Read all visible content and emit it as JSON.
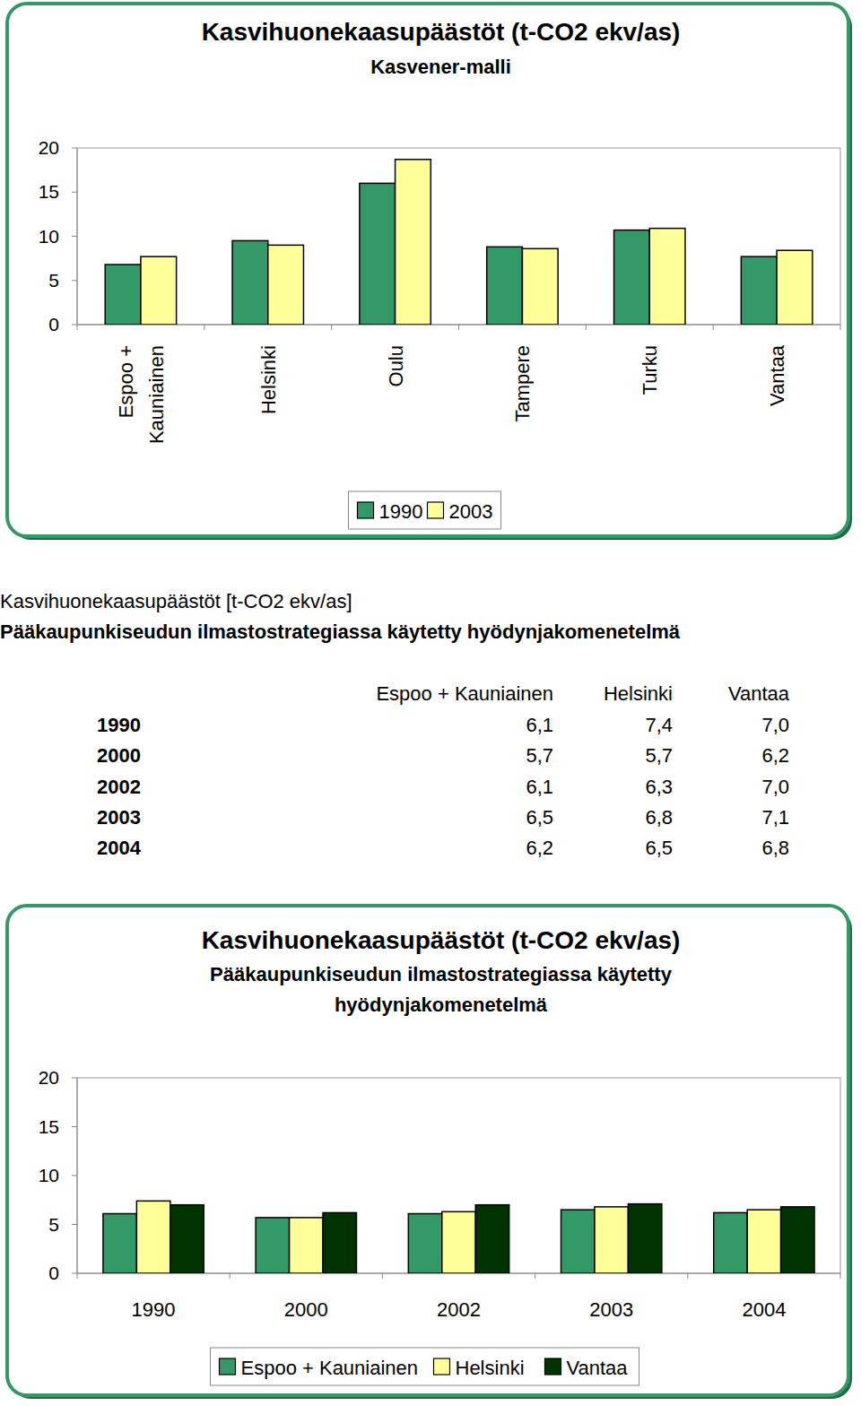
{
  "chart_data": [
    {
      "type": "bar",
      "title": "Kasvihuonekaasupäästöt (t-CO2 ekv/as)",
      "subtitle": "Kasvener-malli",
      "categories": [
        "Espoo + Kauniainen",
        "Helsinki",
        "Oulu",
        "Tampere",
        "Turku",
        "Vantaa"
      ],
      "series": [
        {
          "name": "1990",
          "color": "#339966",
          "values": [
            6.8,
            9.5,
            16.0,
            8.8,
            10.7,
            7.7
          ]
        },
        {
          "name": "2003",
          "color": "#ffff99",
          "values": [
            7.7,
            9.0,
            18.7,
            8.6,
            10.9,
            8.4
          ]
        }
      ],
      "ylim": [
        0,
        20
      ],
      "yticks": [
        0,
        5,
        10,
        15,
        20
      ],
      "grid": false,
      "legend": "bottom"
    },
    {
      "type": "bar",
      "title": "Kasvihuonekaasupäästöt (t-CO2 ekv/as)",
      "subtitle": "Pääkaupunkiseudun ilmastostrategiassa käytetty hyödynjakomenetelmä",
      "categories": [
        "1990",
        "2000",
        "2002",
        "2003",
        "2004"
      ],
      "series": [
        {
          "name": "Espoo + Kauniainen",
          "color": "#339966",
          "values": [
            6.1,
            5.7,
            6.1,
            6.5,
            6.2
          ]
        },
        {
          "name": "Helsinki",
          "color": "#ffff99",
          "values": [
            7.4,
            5.7,
            6.3,
            6.8,
            6.5
          ]
        },
        {
          "name": "Vantaa",
          "color": "#003300",
          "values": [
            7.0,
            6.2,
            7.0,
            7.1,
            6.8
          ]
        }
      ],
      "ylim": [
        0,
        20
      ],
      "yticks": [
        0,
        5,
        10,
        15,
        20
      ],
      "grid": false,
      "legend": "bottom"
    }
  ],
  "table": {
    "title": "Kasvihuonekaasupäästöt [t-CO2 ekv/as]",
    "subtitle": "Pääkaupunkiseudun ilmastostrategiassa käytetty hyödynjakomenetelmä",
    "columns": [
      "Espoo + Kauniainen",
      "Helsinki",
      "Vantaa"
    ],
    "rows": [
      {
        "label": "1990",
        "cells": [
          "6,1",
          "7,4",
          "7,0"
        ]
      },
      {
        "label": "2000",
        "cells": [
          "5,7",
          "5,7",
          "6,2"
        ]
      },
      {
        "label": "2002",
        "cells": [
          "6,1",
          "6,3",
          "7,0"
        ]
      },
      {
        "label": "2003",
        "cells": [
          "6,5",
          "6,8",
          "7,1"
        ]
      },
      {
        "label": "2004",
        "cells": [
          "6,2",
          "6,5",
          "6,8"
        ]
      }
    ]
  }
}
